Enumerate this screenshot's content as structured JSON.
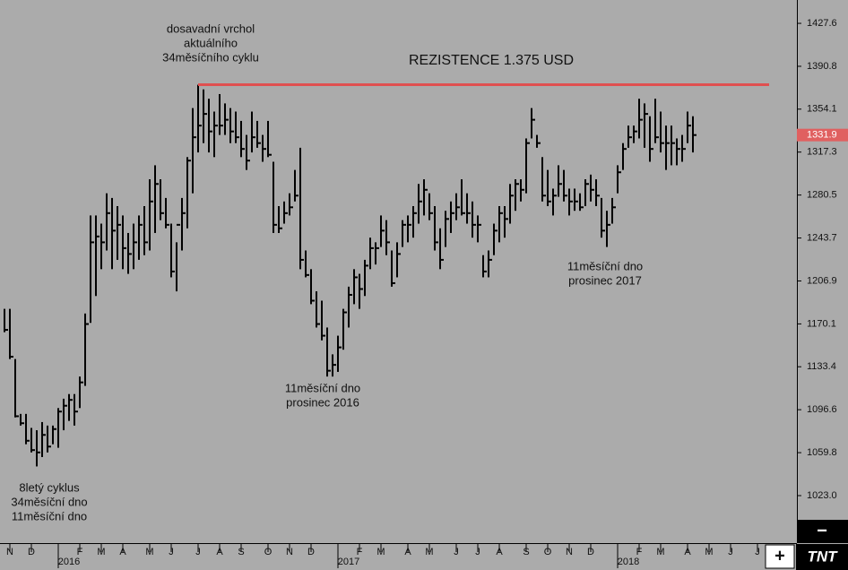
{
  "chart_data": {
    "type": "ohlc",
    "color": "#000000",
    "background": "#ababab",
    "categories": [
      null,
      "N",
      null,
      null,
      null,
      "D",
      null,
      null,
      null,
      null,
      "2016",
      null,
      null,
      null,
      "F",
      null,
      null,
      null,
      "M",
      null,
      null,
      null,
      "A",
      null,
      null,
      null,
      null,
      "M",
      null,
      null,
      null,
      "J",
      null,
      null,
      null,
      null,
      "J",
      null,
      null,
      null,
      "A",
      null,
      null,
      null,
      "S",
      null,
      null,
      null,
      null,
      "O",
      null,
      null,
      null,
      "N",
      null,
      null,
      null,
      "D",
      null,
      null,
      null,
      null,
      "2017",
      null,
      null,
      null,
      "F",
      null,
      null,
      null,
      "M",
      null,
      null,
      null,
      null,
      "A",
      null,
      null,
      null,
      "M",
      null,
      null,
      null,
      null,
      "J",
      null,
      null,
      null,
      "J",
      null,
      null,
      null,
      "A",
      null,
      null,
      null,
      null,
      "S",
      null,
      null,
      null,
      "O",
      null,
      null,
      null,
      "N",
      null,
      null,
      null,
      "D",
      null,
      null,
      null,
      null,
      "2018",
      null,
      null,
      null,
      "F",
      null,
      null,
      null,
      "M",
      null,
      null,
      null,
      null,
      "A",
      null,
      null,
      null,
      "M",
      null,
      null,
      null,
      "J",
      null,
      null,
      null,
      null,
      "J"
    ],
    "high": [
      1183,
      1183,
      1140,
      1093,
      1093,
      1081,
      1079,
      1086,
      1083,
      1083,
      1098,
      1106,
      1110,
      1110,
      1125,
      1179,
      1263,
      1263,
      1256,
      1282,
      1278,
      1271,
      1263,
      1248,
      1256,
      1263,
      1271,
      1294,
      1306,
      1294,
      1278,
      1256,
      1240,
      1278,
      1313,
      1355,
      1375,
      1371,
      1363,
      1352,
      1367,
      1359,
      1355,
      1352,
      1344,
      1332,
      1352,
      1344,
      1332,
      1344,
      1309,
      1271,
      1275,
      1282,
      1302,
      1321,
      1233,
      1217,
      1198,
      1190,
      1167,
      1144,
      1160,
      1183,
      1202,
      1217,
      1213,
      1225,
      1244,
      1240,
      1263,
      1259,
      1233,
      1240,
      1259,
      1263,
      1271,
      1290,
      1294,
      1282,
      1271,
      1252,
      1267,
      1275,
      1282,
      1294,
      1282,
      1275,
      1263,
      1229,
      1233,
      1256,
      1271,
      1271,
      1290,
      1294,
      1294,
      1329,
      1355,
      1332,
      1313,
      1302,
      1286,
      1306,
      1302,
      1286,
      1286,
      1282,
      1294,
      1298,
      1294,
      1278,
      1267,
      1278,
      1306,
      1325,
      1340,
      1340,
      1363,
      1359,
      1348,
      1363,
      1352,
      1340,
      1340,
      1329,
      1332,
      1352,
      1348,
      null,
      null,
      null,
      null,
      null,
      null,
      null,
      null,
      null,
      null,
      null,
      null
    ],
    "low": [
      1163,
      1140,
      1090,
      1083,
      1067,
      1060,
      1048,
      1056,
      1060,
      1067,
      1064,
      1079,
      1087,
      1083,
      1098,
      1117,
      1171,
      1194,
      1217,
      1233,
      1217,
      1225,
      1217,
      1213,
      1217,
      1225,
      1229,
      1233,
      1248,
      1259,
      1252,
      1210,
      1198,
      1233,
      1252,
      1282,
      1317,
      1325,
      1317,
      1313,
      1332,
      1332,
      1325,
      1325,
      1313,
      1302,
      1317,
      1321,
      1309,
      1313,
      1248,
      1248,
      1256,
      1263,
      1275,
      1217,
      1210,
      1187,
      1167,
      1156,
      1125,
      1125,
      1129,
      1148,
      1167,
      1187,
      1183,
      1194,
      1217,
      1221,
      1236,
      1229,
      1202,
      1210,
      1236,
      1240,
      1244,
      1256,
      1263,
      1259,
      1233,
      1217,
      1236,
      1248,
      1259,
      1263,
      1256,
      1244,
      1240,
      1210,
      1210,
      1229,
      1240,
      1244,
      1256,
      1267,
      1275,
      1282,
      1329,
      1321,
      1275,
      1271,
      1263,
      1279,
      1275,
      1263,
      1267,
      1267,
      1271,
      1275,
      1271,
      1244,
      1236,
      1256,
      1282,
      1302,
      1321,
      1325,
      1329,
      1321,
      1309,
      1325,
      1317,
      1302,
      1306,
      1306,
      1309,
      1325,
      1317,
      null,
      null,
      null,
      null,
      null,
      null,
      null,
      null,
      null,
      null,
      null,
      null
    ],
    "close": [
      1165,
      1142,
      1091,
      1085,
      1070,
      1062,
      1060,
      1075,
      1065,
      1080,
      1095,
      1100,
      1105,
      1095,
      1120,
      1170,
      1240,
      1245,
      1240,
      1265,
      1250,
      1255,
      1235,
      1230,
      1240,
      1255,
      1240,
      1275,
      1290,
      1265,
      1255,
      1215,
      1255,
      1265,
      1310,
      1330,
      1340,
      1350,
      1335,
      1340,
      1340,
      1345,
      1335,
      1330,
      1320,
      1310,
      1330,
      1325,
      1320,
      1315,
      1255,
      1252,
      1265,
      1270,
      1280,
      1225,
      1212,
      1190,
      1170,
      1160,
      1130,
      1135,
      1150,
      1180,
      1195,
      1210,
      1200,
      1220,
      1235,
      1235,
      1250,
      1240,
      1205,
      1230,
      1255,
      1255,
      1265,
      1275,
      1285,
      1265,
      1240,
      1225,
      1260,
      1265,
      1270,
      1265,
      1265,
      1255,
      1255,
      1215,
      1225,
      1250,
      1265,
      1260,
      1280,
      1290,
      1285,
      1325,
      1345,
      1325,
      1280,
      1275,
      1280,
      1290,
      1280,
      1275,
      1275,
      1270,
      1290,
      1285,
      1280,
      1250,
      1255,
      1270,
      1300,
      1320,
      1330,
      1335,
      1345,
      1350,
      1320,
      1330,
      1325,
      1325,
      1325,
      1320,
      1320,
      1340,
      1331.9,
      null,
      null,
      null,
      null,
      null,
      null,
      null,
      null,
      null,
      null,
      null,
      null
    ],
    "ylim": [
      982.3,
      1447.6
    ],
    "yticks": [
      {
        "value": 1023,
        "label": "1023.0"
      },
      1059.8,
      1096.6,
      1133.4,
      1170.1,
      1206.9,
      1243.7,
      1280.5,
      1317.3,
      1354.1,
      1390.8,
      1427.6
    ],
    "last_price": 1331.9,
    "last_price_color": "#e06060",
    "resistance": {
      "label": "REZISTENCE 1.375 USD",
      "value": 1375,
      "color": "#e05050"
    },
    "annotations": [
      [
        "dosavadní vrchol",
        "aktuálního",
        "34měsíčního cyklu"
      ],
      [
        "11měsíční dno",
        "prosinec 2016"
      ],
      [
        "11měsíční dno",
        "prosinec 2017"
      ],
      [
        "8letý cyklus",
        "34měsíční dno",
        "11měsíční dno"
      ]
    ],
    "controls": [
      "−",
      "+"
    ],
    "logo": "TNT"
  }
}
